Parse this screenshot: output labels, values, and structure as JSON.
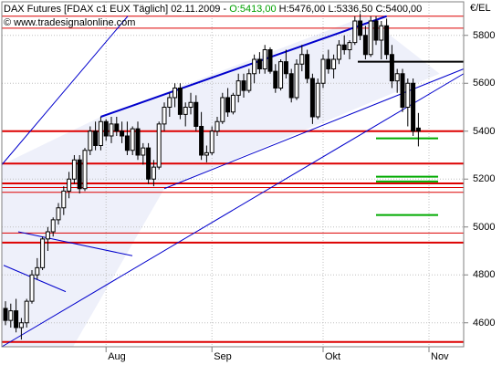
{
  "header": {
    "title": "DAX Futures [FDAX c1 EUX  Täglich] 02.11.2009 -",
    "open_value": "O:5413,00",
    "hlc": "H:5476,00 L:5336,50 C:5400,00",
    "website": "© www.tradesignalonline.com",
    "unit": "€/EL"
  },
  "colors": {
    "up_candle": "#ffffff",
    "down_candle": "#000000",
    "resistance": "#dd0000",
    "channel": "#0000cc",
    "target": "#00aa00",
    "grid": "#c0c0c0",
    "channel_fill": "#eef0fa"
  },
  "chart_data": {
    "type": "candlestick",
    "title": "DAX Futures [FDAX c1 EUX  Täglich] 02.11.2009",
    "xlabel": "",
    "ylabel": "€/EL",
    "ylim": [
      4500,
      5940
    ],
    "y_ticks": [
      "5800",
      "5600",
      "5400",
      "5200",
      "5000",
      "4800",
      "4600"
    ],
    "x_ticks": [
      "Aug",
      "Sep",
      "Okt",
      "Nov"
    ],
    "grid": true,
    "last_bar": {
      "date": "02.11.2009",
      "open": 5413.0,
      "high": 5476.0,
      "low": 5336.5,
      "close": 5400.0
    },
    "candles": [
      [
        4660,
        4690,
        4590,
        4610
      ],
      [
        4610,
        4680,
        4580,
        4650
      ],
      [
        4650,
        4700,
        4560,
        4580
      ],
      [
        4580,
        4620,
        4530,
        4600
      ],
      [
        4600,
        4700,
        4580,
        4690
      ],
      [
        4690,
        4820,
        4680,
        4800
      ],
      [
        4800,
        4870,
        4780,
        4830
      ],
      [
        4830,
        4960,
        4820,
        4950
      ],
      [
        4950,
        5000,
        4900,
        4980
      ],
      [
        4980,
        5040,
        4960,
        5030
      ],
      [
        5030,
        5100,
        5010,
        5080
      ],
      [
        5080,
        5170,
        5050,
        5150
      ],
      [
        5150,
        5230,
        5120,
        5200
      ],
      [
        5200,
        5300,
        5180,
        5280
      ],
      [
        5280,
        5300,
        5140,
        5160
      ],
      [
        5160,
        5330,
        5150,
        5320
      ],
      [
        5320,
        5420,
        5300,
        5400
      ],
      [
        5400,
        5440,
        5320,
        5340
      ],
      [
        5340,
        5460,
        5320,
        5440
      ],
      [
        5440,
        5450,
        5360,
        5380
      ],
      [
        5380,
        5460,
        5350,
        5430
      ],
      [
        5430,
        5460,
        5380,
        5400
      ],
      [
        5400,
        5440,
        5350,
        5380
      ],
      [
        5380,
        5440,
        5300,
        5320
      ],
      [
        5320,
        5420,
        5300,
        5410
      ],
      [
        5410,
        5440,
        5280,
        5300
      ],
      [
        5300,
        5350,
        5260,
        5330
      ],
      [
        5330,
        5350,
        5180,
        5200
      ],
      [
        5200,
        5280,
        5170,
        5250
      ],
      [
        5250,
        5440,
        5240,
        5430
      ],
      [
        5430,
        5520,
        5400,
        5500
      ],
      [
        5500,
        5560,
        5460,
        5540
      ],
      [
        5540,
        5600,
        5500,
        5580
      ],
      [
        5580,
        5600,
        5450,
        5470
      ],
      [
        5470,
        5520,
        5420,
        5500
      ],
      [
        5500,
        5560,
        5470,
        5520
      ],
      [
        5520,
        5550,
        5400,
        5420
      ],
      [
        5420,
        5480,
        5280,
        5300
      ],
      [
        5300,
        5340,
        5270,
        5310
      ],
      [
        5310,
        5420,
        5300,
        5400
      ],
      [
        5400,
        5460,
        5380,
        5440
      ],
      [
        5440,
        5560,
        5430,
        5540
      ],
      [
        5540,
        5580,
        5460,
        5480
      ],
      [
        5480,
        5560,
        5470,
        5550
      ],
      [
        5550,
        5640,
        5520,
        5610
      ],
      [
        5610,
        5640,
        5540,
        5570
      ],
      [
        5570,
        5660,
        5560,
        5640
      ],
      [
        5640,
        5720,
        5600,
        5700
      ],
      [
        5700,
        5730,
        5640,
        5660
      ],
      [
        5660,
        5760,
        5640,
        5740
      ],
      [
        5740,
        5750,
        5640,
        5650
      ],
      [
        5650,
        5680,
        5560,
        5580
      ],
      [
        5580,
        5700,
        5570,
        5690
      ],
      [
        5690,
        5740,
        5620,
        5640
      ],
      [
        5640,
        5660,
        5520,
        5540
      ],
      [
        5540,
        5700,
        5530,
        5680
      ],
      [
        5680,
        5760,
        5650,
        5720
      ],
      [
        5720,
        5740,
        5600,
        5620
      ],
      [
        5620,
        5640,
        5430,
        5460
      ],
      [
        5460,
        5620,
        5450,
        5600
      ],
      [
        5600,
        5720,
        5580,
        5700
      ],
      [
        5700,
        5740,
        5640,
        5660
      ],
      [
        5660,
        5720,
        5620,
        5700
      ],
      [
        5700,
        5780,
        5680,
        5760
      ],
      [
        5760,
        5800,
        5720,
        5740
      ],
      [
        5740,
        5780,
        5700,
        5770
      ],
      [
        5770,
        5880,
        5760,
        5860
      ],
      [
        5860,
        5890,
        5780,
        5800
      ],
      [
        5800,
        5840,
        5700,
        5720
      ],
      [
        5720,
        5880,
        5710,
        5860
      ],
      [
        5860,
        5880,
        5760,
        5780
      ],
      [
        5780,
        5860,
        5700,
        5840
      ],
      [
        5840,
        5870,
        5700,
        5720
      ],
      [
        5720,
        5760,
        5580,
        5610
      ],
      [
        5610,
        5660,
        5560,
        5640
      ],
      [
        5640,
        5660,
        5480,
        5500
      ],
      [
        5500,
        5620,
        5420,
        5600
      ],
      [
        5600,
        5620,
        5380,
        5400
      ],
      [
        5413,
        5476,
        5336.5,
        5400
      ]
    ],
    "horizontal_levels": [
      {
        "y": 5880,
        "style": "resistance"
      },
      {
        "y": 5830,
        "style": "resistance"
      },
      {
        "y": 5690,
        "style": "black"
      },
      {
        "y": 5400,
        "style": "resistance-bold"
      },
      {
        "y": 5265,
        "style": "resistance-bold"
      },
      {
        "y": 5182,
        "style": "resistance-bold"
      },
      {
        "y": 5165,
        "style": "resistance"
      },
      {
        "y": 5145,
        "style": "resistance"
      },
      {
        "y": 4975,
        "style": "resistance"
      },
      {
        "y": 4935,
        "style": "resistance-bold"
      },
      {
        "y": 4520,
        "style": "resistance-bold"
      },
      {
        "y": 5370,
        "style": "target"
      },
      {
        "y": 5210,
        "style": "target"
      },
      {
        "y": 5190,
        "style": "target"
      },
      {
        "y": 5050,
        "style": "target"
      }
    ]
  }
}
